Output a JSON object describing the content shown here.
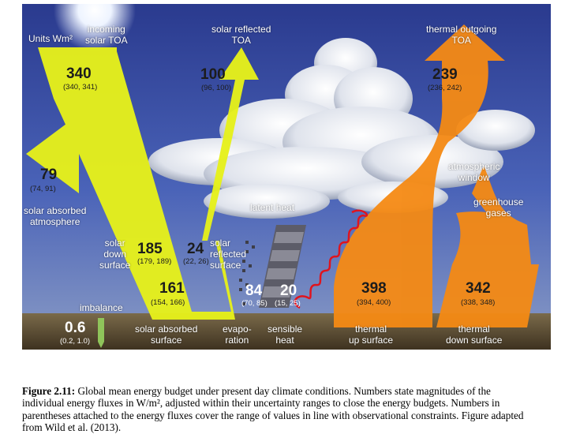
{
  "diagram": {
    "units_label": "Units Wm²",
    "colors": {
      "solar": "#e6f01a",
      "thermal": "#f58a14",
      "sky": "#3b4fa8",
      "ground": "#5a4a30",
      "imbalance": "#8fc45a"
    },
    "fluxes": {
      "incoming_solar": {
        "label": "incoming\nsolar TOA",
        "value": "340",
        "range": "(340, 341)"
      },
      "solar_reflected_toa": {
        "label": "solar reflected\nTOA",
        "value": "100",
        "range": "(96, 100)"
      },
      "thermal_outgoing_toa": {
        "label": "thermal outgoing\nTOA",
        "value": "239",
        "range": "(236, 242)"
      },
      "solar_absorbed_atmosphere": {
        "label": "solar absorbed\natmosphere",
        "value": "79",
        "range": "(74, 91)"
      },
      "solar_down_surface": {
        "label": "solar\ndown\nsurface",
        "value": "185",
        "range": "(179, 189)"
      },
      "solar_reflected_surface": {
        "label": "solar\nreflected\nsurface",
        "value": "24",
        "range": "(22, 26)"
      },
      "solar_absorbed_surface": {
        "label": "solar absorbed\nsurface",
        "value": "161",
        "range": "(154, 166)"
      },
      "latent_heat": {
        "label": "latent heat"
      },
      "evaporation": {
        "label": "evapo-\nration",
        "value": "84",
        "range": "(70, 85)"
      },
      "sensible_heat": {
        "label": "sensible\nheat",
        "value": "20",
        "range": "(15, 25)"
      },
      "thermal_up_surface": {
        "label": "thermal\nup surface",
        "value": "398",
        "range": "(394, 400)"
      },
      "thermal_down_surface": {
        "label": "thermal\ndown surface",
        "value": "342",
        "range": "(338, 348)"
      },
      "atmospheric_window": {
        "label": "atmospheric\nwindow"
      },
      "greenhouse_gases": {
        "label": "greenhouse\ngases"
      },
      "imbalance": {
        "label": "imbalance",
        "value": "0.6",
        "range": "(0.2, 1.0)"
      }
    }
  },
  "caption": {
    "figure_number": "Figure 2.11:",
    "text": "Global mean energy budget under present day climate conditions. Numbers state magnitudes of the individual energy fluxes in W/m², adjusted within their uncertainty ranges to close the energy budgets. Numbers in parentheses attached to the energy fluxes cover the range of values in line with observational constraints. Figure adapted from Wild et al. (2013)."
  }
}
